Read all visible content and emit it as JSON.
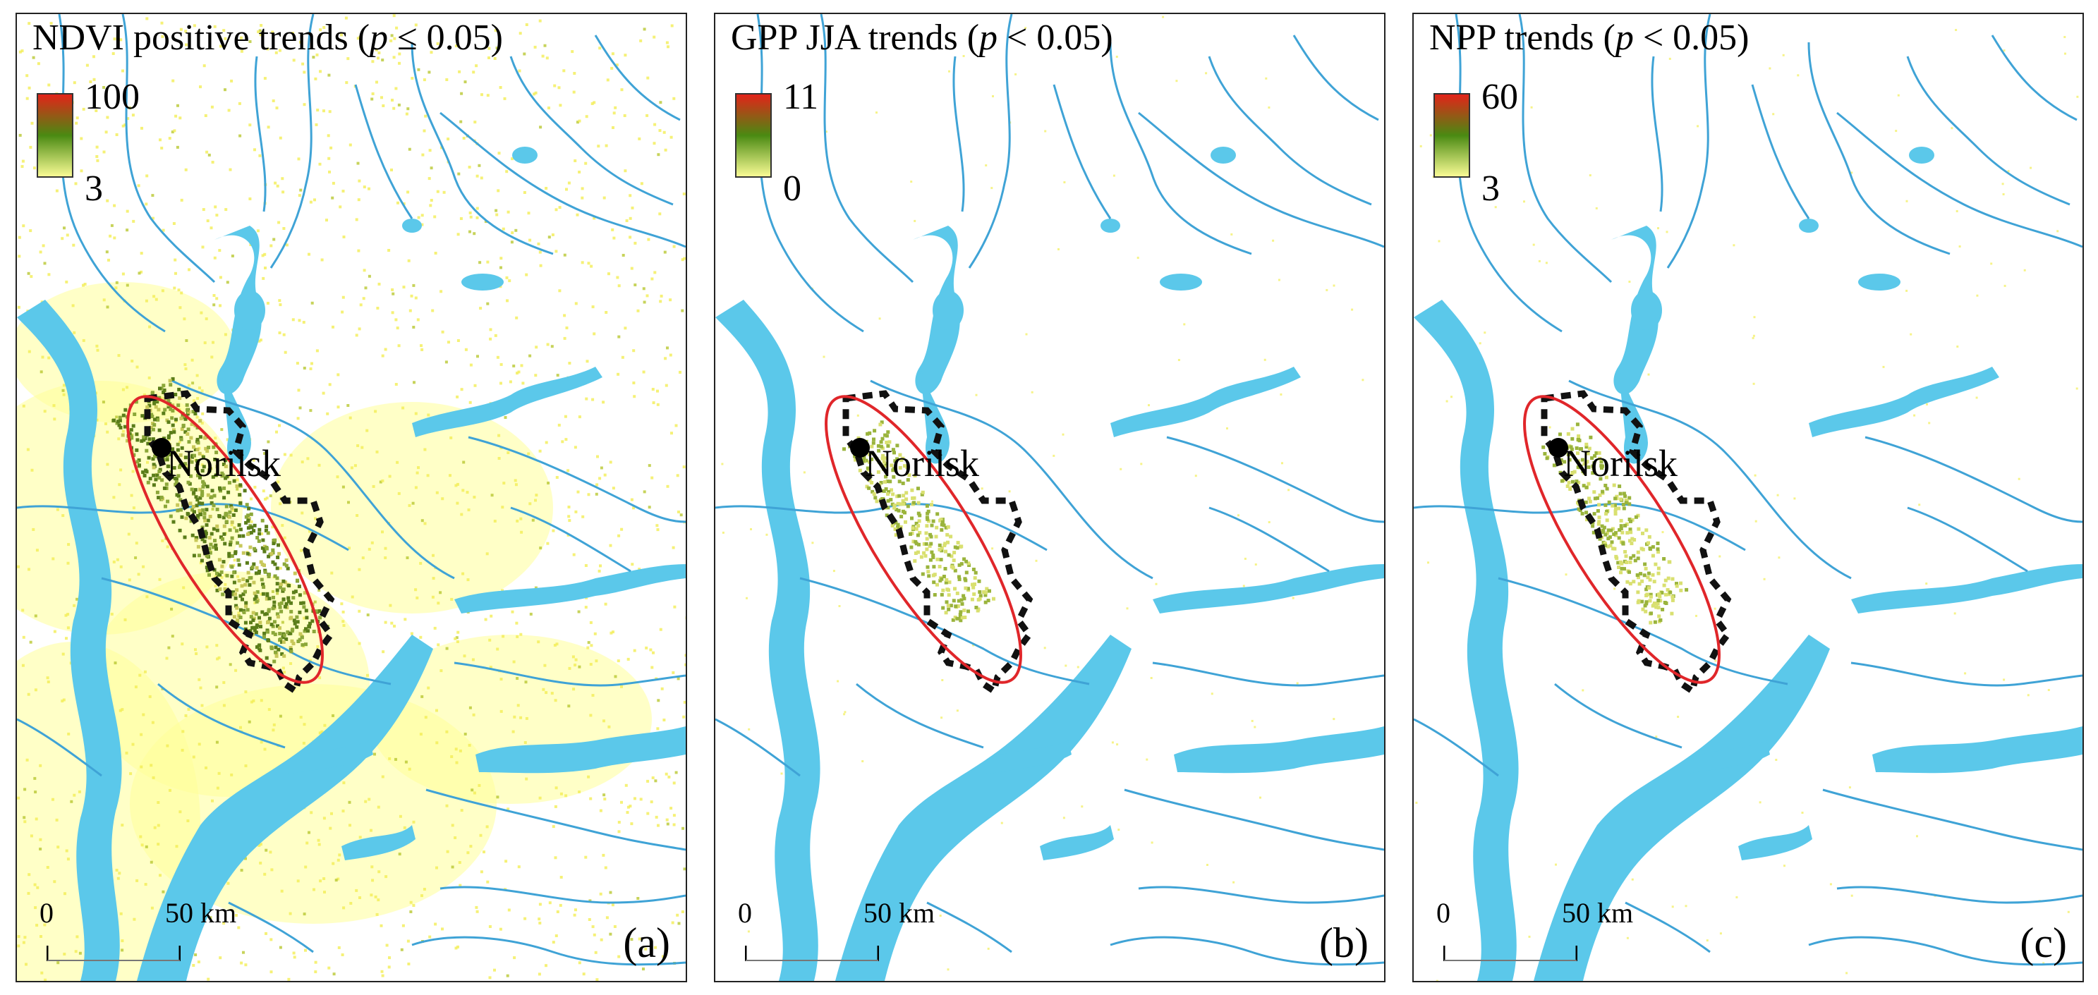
{
  "panels": [
    {
      "title_prefix": "NDVI positive trends (",
      "title_var": "p",
      "title_suffix": " ≤ 0.05)",
      "legend_max": "100",
      "legend_min": "3",
      "city": "Norilsk",
      "scale_zero": "0",
      "scale_distance": "50  km",
      "letter": "(a)",
      "greening": "extensive"
    },
    {
      "title_prefix": "GPP JJA trends (",
      "title_var": "p",
      "title_suffix": " < 0.05)",
      "legend_max": "11",
      "legend_min": "0",
      "city": "Norilsk",
      "scale_zero": "0",
      "scale_distance": "50  km",
      "letter": "(b)",
      "greening": "local"
    },
    {
      "title_prefix": "NPP trends (",
      "title_var": "p",
      "title_suffix": " < 0.05)",
      "legend_max": "60",
      "legend_min": "3",
      "city": "Norilsk",
      "scale_zero": "0",
      "scale_distance": "50  km",
      "letter": "(c)",
      "greening": "local"
    }
  ],
  "colors": {
    "water": "#5bc8ea",
    "river": "#3fa3d6",
    "ellipse": "#e0262a",
    "boundary": "#111111",
    "legend_top": "#e8201a",
    "legend_mid": "#4a8a12",
    "legend_bottom": "#ffff99"
  }
}
